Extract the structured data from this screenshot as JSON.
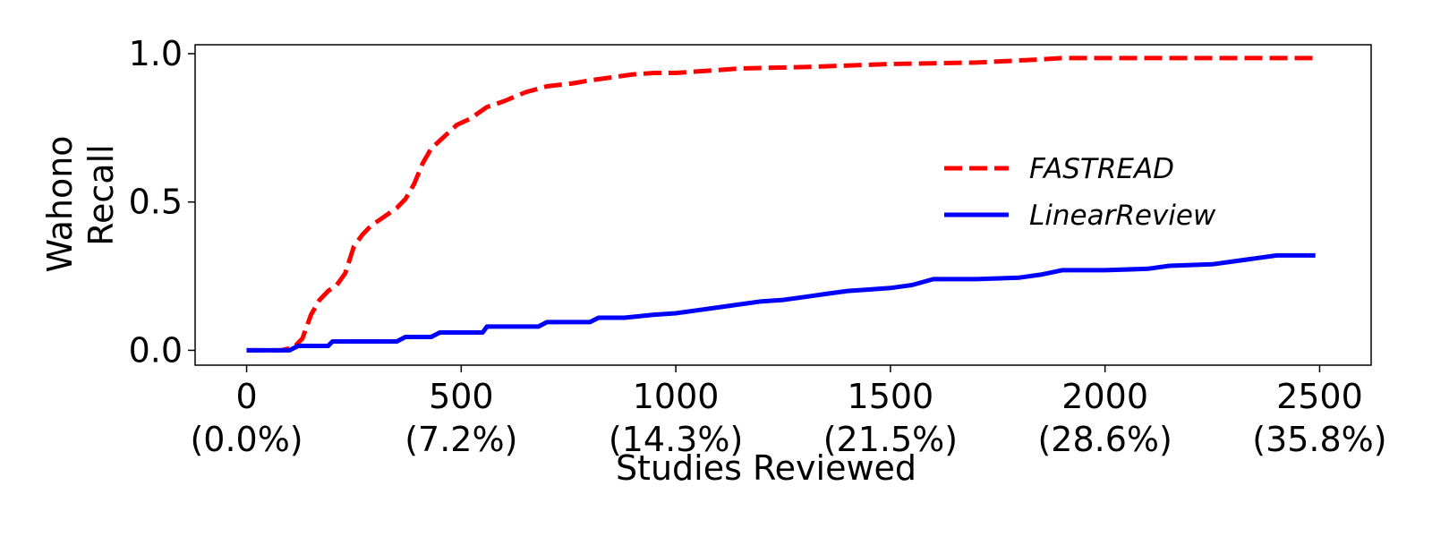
{
  "chart_data": {
    "type": "line",
    "title": "",
    "xlabel": "Studies Reviewed",
    "ylabel_lines": [
      "Wahono",
      "Recall"
    ],
    "xlim": [
      -120,
      2620
    ],
    "ylim": [
      -0.05,
      1.03
    ],
    "grid": false,
    "legend_position": "center-right",
    "x_ticks": [
      {
        "value": 0,
        "label": "0",
        "sublabel": "(0.0%)"
      },
      {
        "value": 500,
        "label": "500",
        "sublabel": "(7.2%)"
      },
      {
        "value": 1000,
        "label": "1000",
        "sublabel": "(14.3%)"
      },
      {
        "value": 1500,
        "label": "1500",
        "sublabel": "(21.5%)"
      },
      {
        "value": 2000,
        "label": "2000",
        "sublabel": "(28.6%)"
      },
      {
        "value": 2500,
        "label": "2500",
        "sublabel": "(35.8%)"
      }
    ],
    "y_ticks": [
      {
        "value": 0.0,
        "label": "0.0"
      },
      {
        "value": 0.5,
        "label": "0.5"
      },
      {
        "value": 1.0,
        "label": "1.0"
      }
    ],
    "series": [
      {
        "name": "FASTREAD",
        "color": "#ff0000",
        "style": "dashed",
        "x": [
          0,
          80,
          110,
          130,
          150,
          170,
          190,
          210,
          230,
          250,
          270,
          290,
          320,
          350,
          370,
          390,
          410,
          430,
          460,
          490,
          520,
          560,
          600,
          650,
          700,
          760,
          800,
          850,
          900,
          950,
          1000,
          1100,
          1150,
          1300,
          1400,
          1500,
          1700,
          1840,
          1900,
          2000,
          2200,
          2490
        ],
        "y": [
          0.0,
          0.0,
          0.01,
          0.04,
          0.12,
          0.17,
          0.2,
          0.22,
          0.26,
          0.35,
          0.39,
          0.42,
          0.45,
          0.48,
          0.51,
          0.56,
          0.63,
          0.68,
          0.72,
          0.76,
          0.78,
          0.82,
          0.84,
          0.87,
          0.89,
          0.9,
          0.91,
          0.92,
          0.93,
          0.935,
          0.935,
          0.945,
          0.95,
          0.955,
          0.96,
          0.965,
          0.97,
          0.98,
          0.985,
          0.985,
          0.985,
          0.985
        ]
      },
      {
        "name": "LinearReview",
        "color": "#0000ff",
        "style": "solid",
        "x": [
          0,
          100,
          120,
          190,
          200,
          350,
          370,
          430,
          450,
          550,
          560,
          680,
          700,
          800,
          820,
          880,
          950,
          1000,
          1050,
          1100,
          1150,
          1200,
          1250,
          1300,
          1350,
          1400,
          1450,
          1500,
          1550,
          1600,
          1650,
          1700,
          1800,
          1850,
          1900,
          2000,
          2100,
          2150,
          2250,
          2300,
          2350,
          2400,
          2490
        ],
        "y": [
          0.0,
          0.0,
          0.015,
          0.015,
          0.03,
          0.03,
          0.045,
          0.045,
          0.06,
          0.06,
          0.08,
          0.08,
          0.095,
          0.095,
          0.11,
          0.11,
          0.12,
          0.125,
          0.135,
          0.145,
          0.155,
          0.165,
          0.17,
          0.18,
          0.19,
          0.2,
          0.205,
          0.21,
          0.22,
          0.24,
          0.24,
          0.24,
          0.245,
          0.255,
          0.27,
          0.27,
          0.275,
          0.285,
          0.29,
          0.3,
          0.31,
          0.32,
          0.32
        ]
      }
    ]
  }
}
